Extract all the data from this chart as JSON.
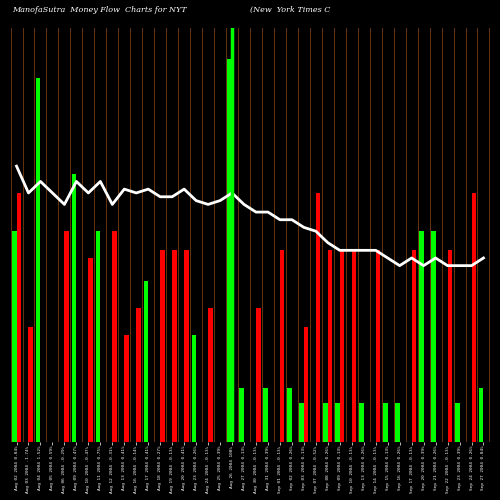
{
  "title_left": "ManofaSutra  Money Flow  Charts for NYT",
  "title_right": "(New  York Times C",
  "background_color": "#000000",
  "bar_color_green": "#00ff00",
  "bar_color_red": "#ff0000",
  "line_color": "#ffffff",
  "separator_color": "#8B4513",
  "highlight_color": "#00ff00",
  "highlight_index": 18,
  "n_groups": 40,
  "group_labels": [
    "Aug 02 2004 0.04%",
    "Aug 03 2004 -1.74%",
    "Aug 04 2004 1.52%",
    "Aug 05 2004 0.59%",
    "Aug 06 2004 -0.29%",
    "Aug 09 2004 0.47%",
    "Aug 10 2004 -0.47%",
    "Aug 11 2004 0.75%",
    "Aug 12 2004 -0.31%",
    "Aug 13 2004 0.41%",
    "Aug 16 2004 -0.14%",
    "Aug 17 2004 0.41%",
    "Aug 18 2004 0.27%",
    "Aug 19 2004 -0.13%",
    "Aug 20 2004 0.41%",
    "Aug 23 2004 0.26%",
    "Aug 24 2004 -0.13%",
    "Aug 25 2004 0.39%",
    "Aug 26 2004 100%",
    "Aug 27 2004 0.13%",
    "Aug 30 2004 -0.13%",
    "Aug 31 2004 0.39%",
    "Sep 01 2004 -0.13%",
    "Sep 02 2004 0.26%",
    "Sep 03 2004 0.13%",
    "Sep 07 2004 -0.52%",
    "Sep 08 2004 0.26%",
    "Sep 09 2004 0.13%",
    "Sep 10 2004 -0.13%",
    "Sep 13 2004 0.26%",
    "Sep 14 2004 -0.13%",
    "Sep 15 2004 0.13%",
    "Sep 16 2004 0.26%",
    "Sep 17 2004 -0.13%",
    "Sep 20 2004 0.39%",
    "Sep 21 2004 0.26%",
    "Sep 22 2004 -0.13%",
    "Sep 23 2004 0.39%",
    "Sep 24 2004 0.26%",
    "Sep 27 2004 0.04%"
  ],
  "green_values": [
    0.55,
    0.0,
    0.95,
    0.0,
    0.0,
    0.7,
    0.0,
    0.55,
    0.0,
    0.0,
    0.0,
    0.42,
    0.0,
    0.0,
    0.0,
    0.28,
    0.0,
    0.0,
    1.0,
    0.14,
    0.0,
    0.14,
    0.0,
    0.14,
    0.1,
    0.0,
    0.1,
    0.1,
    0.0,
    0.1,
    0.0,
    0.1,
    0.1,
    0.0,
    0.55,
    0.55,
    0.0,
    0.1,
    0.0,
    0.14
  ],
  "red_values": [
    0.65,
    0.3,
    0.0,
    0.0,
    0.55,
    0.0,
    0.48,
    0.0,
    0.55,
    0.28,
    0.35,
    0.0,
    0.5,
    0.5,
    0.5,
    0.0,
    0.35,
    0.0,
    0.0,
    0.0,
    0.35,
    0.0,
    0.5,
    0.0,
    0.3,
    0.65,
    0.5,
    0.5,
    0.5,
    0.0,
    0.5,
    0.0,
    0.0,
    0.5,
    0.0,
    0.0,
    0.5,
    0.0,
    0.65,
    0.0
  ],
  "line_values": [
    0.72,
    0.65,
    0.68,
    0.65,
    0.62,
    0.68,
    0.65,
    0.68,
    0.62,
    0.66,
    0.65,
    0.66,
    0.64,
    0.64,
    0.66,
    0.63,
    0.62,
    0.63,
    0.65,
    0.62,
    0.6,
    0.6,
    0.58,
    0.58,
    0.56,
    0.55,
    0.52,
    0.5,
    0.5,
    0.5,
    0.5,
    0.48,
    0.46,
    0.48,
    0.46,
    0.48,
    0.46,
    0.46,
    0.46,
    0.48
  ]
}
